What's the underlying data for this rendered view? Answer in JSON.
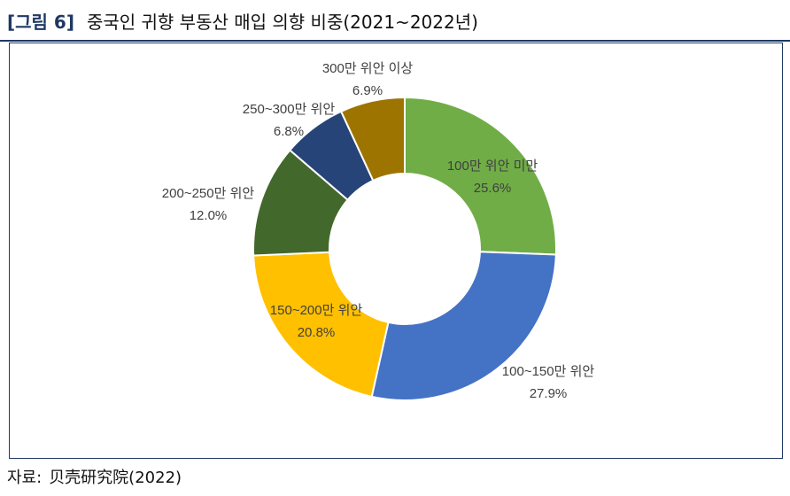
{
  "figure": {
    "label": "[그림 6]",
    "title": "중국인 귀향 부동산 매입 의향 비중(2021~2022년)"
  },
  "source": {
    "key": "자료:",
    "value": "贝壳研究院(2022)"
  },
  "chart_data": {
    "type": "pie",
    "donut": true,
    "start_angle_deg": 0,
    "direction": "clockwise",
    "legend": "none",
    "slices": [
      {
        "label": "100만 위안 미만",
        "value": 25.6,
        "display": "25.6%",
        "color": "#70AD47"
      },
      {
        "label": "100~150만 위안",
        "value": 27.9,
        "display": "27.9%",
        "color": "#4472C4"
      },
      {
        "label": "150~200만 위안",
        "value": 20.8,
        "display": "20.8%",
        "color": "#FFC000"
      },
      {
        "label": "200~250만 위안",
        "value": 12.0,
        "display": "12.0%",
        "color": "#43682B"
      },
      {
        "label": "250~300만 위안",
        "value": 6.8,
        "display": "6.8%",
        "color": "#264478"
      },
      {
        "label": "300만 위안 이상",
        "value": 6.9,
        "display": "6.9%",
        "color": "#9E7400"
      }
    ]
  }
}
